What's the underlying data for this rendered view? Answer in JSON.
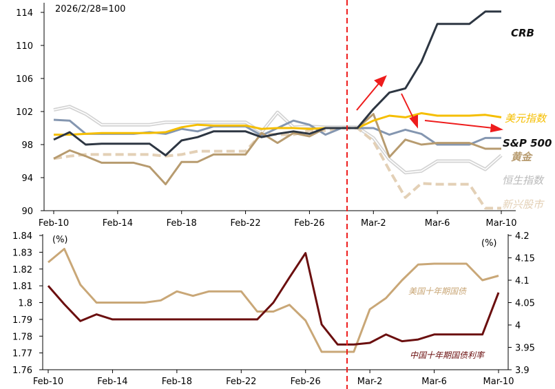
{
  "chart_data": [
    {
      "type": "line",
      "title": "",
      "base_note": "2026/2/28=100",
      "xlabel": "",
      "ylabel": "",
      "x": [
        "Feb-10",
        "Feb-11",
        "Feb-12",
        "Feb-13",
        "Feb-14",
        "Feb-15",
        "Feb-16",
        "Feb-17",
        "Feb-18",
        "Feb-19",
        "Feb-20",
        "Feb-21",
        "Feb-22",
        "Feb-23",
        "Feb-24",
        "Feb-25",
        "Feb-26",
        "Feb-27",
        "Feb-28",
        "Mar-1",
        "Mar-2",
        "Mar-3",
        "Mar-4",
        "Mar-5",
        "Mar-6",
        "Mar-7",
        "Mar-8",
        "Mar-9",
        "Mar-10"
      ],
      "x_tick_labels": [
        "Feb-10",
        "Feb-14",
        "Feb-18",
        "Feb-22",
        "Feb-26",
        "Mar-2",
        "Mar-6",
        "Mar-10"
      ],
      "ylim": [
        90,
        114
      ],
      "y_ticks": [
        90,
        94,
        98,
        102,
        106,
        110,
        114
      ],
      "vline_x": "Mar-1",
      "series": [
        {
          "name": "恒生指数",
          "color": "#d3d3d3",
          "style": "double",
          "values": [
            102.2,
            102.6,
            101.7,
            100.4,
            100.4,
            100.4,
            100.4,
            100.7,
            100.7,
            100.7,
            100.7,
            100.7,
            100.7,
            99.5,
            101.9,
            100.1,
            100.2,
            100.1,
            100.1,
            100.1,
            98.8,
            96.2,
            94.6,
            94.8,
            96.0,
            96.0,
            96.0,
            95.0,
            96.7
          ]
        },
        {
          "name": "新兴股市",
          "color": "#e3d0b6",
          "style": "dashed",
          "values": [
            96.3,
            96.6,
            96.8,
            96.8,
            96.8,
            96.8,
            96.8,
            96.6,
            96.8,
            97.2,
            97.2,
            97.2,
            97.2,
            99.3,
            99.2,
            99.2,
            99.7,
            99.7,
            100.0,
            100.0,
            98.4,
            94.9,
            91.6,
            93.3,
            93.2,
            93.2,
            93.2,
            90.3,
            90.3
          ]
        },
        {
          "name": "S&P 500",
          "color": "#8496b0",
          "style": "solid",
          "values": [
            101.0,
            100.9,
            99.3,
            99.3,
            99.3,
            99.3,
            99.5,
            99.3,
            99.9,
            99.6,
            100.2,
            100.2,
            100.2,
            99.1,
            100.0,
            100.9,
            100.4,
            99.2,
            100.0,
            100.0,
            100.0,
            99.2,
            99.8,
            99.3,
            98.0,
            98.0,
            98.0,
            98.8,
            98.8
          ]
        },
        {
          "name": "黄金",
          "color": "#b79b6f",
          "style": "solid",
          "values": [
            96.3,
            97.3,
            96.6,
            95.8,
            95.8,
            95.8,
            95.3,
            93.2,
            95.9,
            95.9,
            96.8,
            96.8,
            96.8,
            99.4,
            98.2,
            99.4,
            99.0,
            100.0,
            100.0,
            100.0,
            101.7,
            96.5,
            98.6,
            98.0,
            98.2,
            98.2,
            98.2,
            97.5,
            97.5
          ]
        },
        {
          "name": "美元指数",
          "color": "#f5be00",
          "style": "solid",
          "values": [
            99.2,
            99.2,
            99.3,
            99.4,
            99.4,
            99.4,
            99.4,
            99.5,
            100.1,
            100.4,
            100.3,
            100.3,
            100.3,
            99.9,
            100.0,
            100.0,
            99.9,
            100.0,
            100.0,
            100.0,
            100.9,
            101.5,
            101.3,
            101.8,
            101.5,
            101.5,
            101.5,
            101.6,
            101.3
          ]
        },
        {
          "name": "CRB",
          "color": "#2d3642",
          "style": "solid",
          "values": [
            98.6,
            99.5,
            98.0,
            98.1,
            98.1,
            98.1,
            98.1,
            96.7,
            98.5,
            98.9,
            99.6,
            99.6,
            99.6,
            98.9,
            99.3,
            99.6,
            99.3,
            100.0,
            100.0,
            100.0,
            102.3,
            104.3,
            104.8,
            108.0,
            112.6,
            112.6,
            112.6,
            114.1,
            114.1
          ]
        }
      ],
      "labels": [
        "CRB",
        "美元指数",
        "S&P 500",
        "黄金",
        "恒生指数",
        "新兴股市"
      ]
    },
    {
      "type": "line",
      "title": "",
      "x": [
        "Feb-10",
        "Feb-11",
        "Feb-12",
        "Feb-13",
        "Feb-14",
        "Feb-15",
        "Feb-16",
        "Feb-17",
        "Feb-18",
        "Feb-19",
        "Feb-20",
        "Feb-21",
        "Feb-22",
        "Feb-23",
        "Feb-24",
        "Feb-25",
        "Feb-26",
        "Feb-27",
        "Feb-28",
        "Mar-1",
        "Mar-2",
        "Mar-3",
        "Mar-4",
        "Mar-5",
        "Mar-6",
        "Mar-7",
        "Mar-8",
        "Mar-9",
        "Mar-10"
      ],
      "x_tick_labels": [
        "Feb-10",
        "Feb-14",
        "Feb-18",
        "Feb-22",
        "Feb-26",
        "Mar-2",
        "Mar-6",
        "Mar-10"
      ],
      "vline_x": "Mar-1",
      "left_axis": {
        "unit": "(%)",
        "ylim": [
          1.76,
          1.84
        ],
        "ticks": [
          1.76,
          1.77,
          1.78,
          1.79,
          1.8,
          1.81,
          1.82,
          1.83,
          1.84
        ],
        "tick_labels": [
          "1.76",
          "1.77",
          "1.78",
          "1.79",
          "1.8",
          "1.81",
          "1.82",
          "1.83",
          "1.84"
        ]
      },
      "right_axis": {
        "unit": "(%)",
        "ylim": [
          3.9,
          4.2
        ],
        "ticks": [
          3.9,
          3.95,
          4.0,
          4.05,
          4.1,
          4.15,
          4.2
        ],
        "tick_labels": [
          "3.9",
          "3.95",
          "4",
          "4.05",
          "4.1",
          "4.15",
          "4.2"
        ]
      },
      "series": [
        {
          "name": "美国十年期国债",
          "axis": "right",
          "color": "#c9a777",
          "values": [
            4.14,
            4.17,
            4.09,
            4.05,
            4.05,
            4.05,
            4.05,
            4.055,
            4.075,
            4.065,
            4.075,
            4.075,
            4.075,
            4.03,
            4.03,
            4.045,
            4.01,
            3.94,
            3.94,
            3.94,
            4.035,
            4.06,
            4.1,
            4.135,
            4.137,
            4.137,
            4.137,
            4.1,
            4.11
          ]
        },
        {
          "name": "中国十年期国债利率",
          "axis": "left",
          "color": "#6b0f0f",
          "values": [
            1.81,
            1.799,
            1.789,
            1.793,
            1.79,
            1.79,
            1.79,
            1.79,
            1.79,
            1.79,
            1.79,
            1.79,
            1.79,
            1.79,
            1.8,
            1.815,
            1.8295,
            1.787,
            1.775,
            1.775,
            1.776,
            1.781,
            1.777,
            1.778,
            1.781,
            1.781,
            1.781,
            1.781,
            1.806
          ]
        }
      ]
    }
  ]
}
